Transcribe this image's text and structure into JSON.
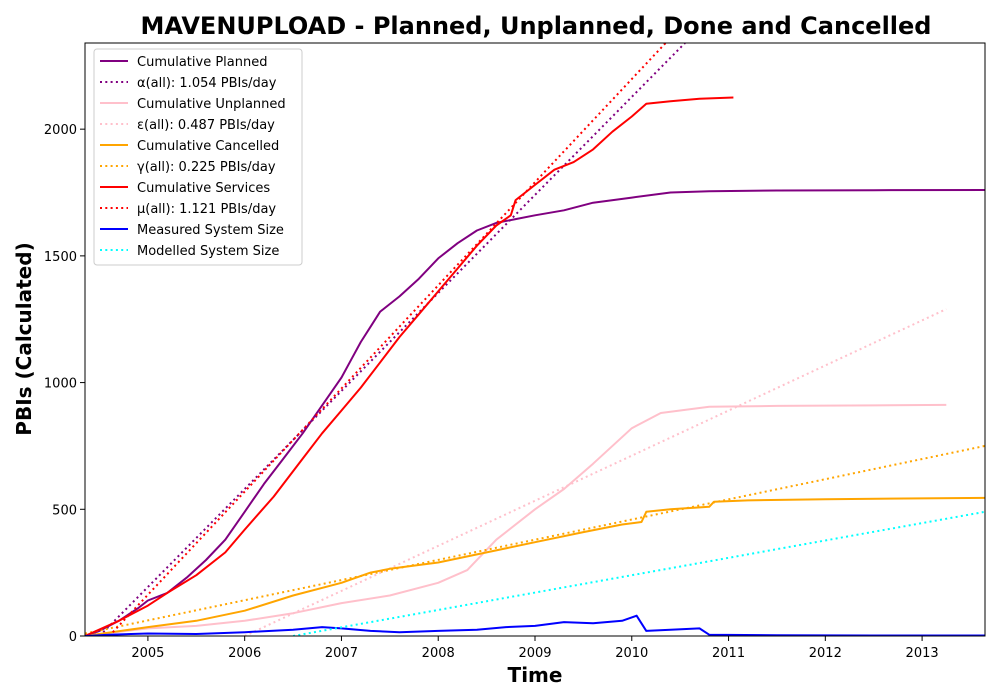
{
  "chart_data": {
    "type": "line",
    "title": "MAVENUPLOAD - Planned, Unplanned, Done  and Cancelled",
    "xlabel": "Time",
    "ylabel": "PBIs (Calculated)",
    "xlim": [
      2004.35,
      2013.65
    ],
    "ylim": [
      0,
      2340
    ],
    "x_ticks": [
      2005,
      2006,
      2007,
      2008,
      2009,
      2010,
      2011,
      2012,
      2013
    ],
    "y_ticks": [
      0,
      500,
      1000,
      1500,
      2000
    ],
    "legend_position": "top-left",
    "series": [
      {
        "name": "Cumulative Planned",
        "color": "#800080",
        "style": "solid",
        "points": [
          [
            2004.35,
            0
          ],
          [
            2004.5,
            20
          ],
          [
            2004.7,
            60
          ],
          [
            2004.9,
            110
          ],
          [
            2005.0,
            140
          ],
          [
            2005.2,
            170
          ],
          [
            2005.4,
            230
          ],
          [
            2005.6,
            300
          ],
          [
            2005.8,
            380
          ],
          [
            2006.0,
            490
          ],
          [
            2006.2,
            600
          ],
          [
            2006.4,
            700
          ],
          [
            2006.6,
            800
          ],
          [
            2006.8,
            910
          ],
          [
            2007.0,
            1020
          ],
          [
            2007.1,
            1090
          ],
          [
            2007.2,
            1160
          ],
          [
            2007.3,
            1220
          ],
          [
            2007.4,
            1280
          ],
          [
            2007.6,
            1340
          ],
          [
            2007.8,
            1410
          ],
          [
            2008.0,
            1490
          ],
          [
            2008.2,
            1550
          ],
          [
            2008.4,
            1600
          ],
          [
            2008.6,
            1630
          ],
          [
            2008.8,
            1645
          ],
          [
            2009.0,
            1660
          ],
          [
            2009.3,
            1680
          ],
          [
            2009.6,
            1710
          ],
          [
            2010.0,
            1730
          ],
          [
            2010.4,
            1750
          ],
          [
            2010.8,
            1755
          ],
          [
            2011.5,
            1758
          ],
          [
            2012.5,
            1759
          ],
          [
            2013.65,
            1760
          ]
        ]
      },
      {
        "name": "α(all): 1.054 PBIs/day",
        "color": "#800080",
        "style": "dotted",
        "points": [
          [
            2004.5,
            0
          ],
          [
            2010.55,
            2340
          ]
        ]
      },
      {
        "name": "Cumulative Unplanned",
        "color": "#ffc0cb",
        "style": "solid",
        "points": [
          [
            2004.35,
            0
          ],
          [
            2005.0,
            30
          ],
          [
            2005.5,
            40
          ],
          [
            2006.0,
            60
          ],
          [
            2006.5,
            90
          ],
          [
            2007.0,
            130
          ],
          [
            2007.5,
            160
          ],
          [
            2008.0,
            210
          ],
          [
            2008.3,
            260
          ],
          [
            2008.6,
            380
          ],
          [
            2009.0,
            500
          ],
          [
            2009.3,
            580
          ],
          [
            2009.6,
            680
          ],
          [
            2010.0,
            820
          ],
          [
            2010.3,
            880
          ],
          [
            2010.8,
            905
          ],
          [
            2011.5,
            908
          ],
          [
            2012.5,
            910
          ],
          [
            2013.25,
            912
          ]
        ]
      },
      {
        "name": "ε(all): 0.487 PBIs/day",
        "color": "#ffc0cb",
        "style": "dotted",
        "points": [
          [
            2006.0,
            0
          ],
          [
            2013.25,
            1290
          ]
        ]
      },
      {
        "name": "Cumulative Cancelled",
        "color": "#ffa500",
        "style": "solid",
        "points": [
          [
            2004.35,
            0
          ],
          [
            2005.0,
            35
          ],
          [
            2005.5,
            60
          ],
          [
            2006.0,
            100
          ],
          [
            2006.5,
            160
          ],
          [
            2007.0,
            210
          ],
          [
            2007.3,
            250
          ],
          [
            2007.5,
            265
          ],
          [
            2008.0,
            290
          ],
          [
            2008.5,
            330
          ],
          [
            2009.0,
            370
          ],
          [
            2009.5,
            410
          ],
          [
            2009.9,
            440
          ],
          [
            2010.1,
            450
          ],
          [
            2010.15,
            490
          ],
          [
            2010.4,
            500
          ],
          [
            2010.8,
            510
          ],
          [
            2010.85,
            530
          ],
          [
            2011.2,
            535
          ],
          [
            2012.0,
            540
          ],
          [
            2013.65,
            545
          ]
        ]
      },
      {
        "name": "γ(all): 0.225 PBIs/day",
        "color": "#ffa500",
        "style": "dotted",
        "points": [
          [
            2004.35,
            10
          ],
          [
            2013.65,
            750
          ]
        ]
      },
      {
        "name": "Cumulative Services",
        "color": "#ff0000",
        "style": "solid",
        "points": [
          [
            2004.35,
            0
          ],
          [
            2004.7,
            60
          ],
          [
            2005.0,
            120
          ],
          [
            2005.2,
            170
          ],
          [
            2005.5,
            240
          ],
          [
            2005.8,
            330
          ],
          [
            2006.0,
            420
          ],
          [
            2006.3,
            550
          ],
          [
            2006.6,
            700
          ],
          [
            2006.8,
            800
          ],
          [
            2007.0,
            890
          ],
          [
            2007.2,
            980
          ],
          [
            2007.4,
            1080
          ],
          [
            2007.6,
            1180
          ],
          [
            2007.8,
            1270
          ],
          [
            2008.0,
            1360
          ],
          [
            2008.2,
            1450
          ],
          [
            2008.4,
            1540
          ],
          [
            2008.6,
            1620
          ],
          [
            2008.75,
            1660
          ],
          [
            2008.8,
            1720
          ],
          [
            2009.0,
            1780
          ],
          [
            2009.2,
            1840
          ],
          [
            2009.4,
            1870
          ],
          [
            2009.6,
            1920
          ],
          [
            2009.8,
            1990
          ],
          [
            2010.0,
            2050
          ],
          [
            2010.15,
            2100
          ],
          [
            2010.4,
            2110
          ],
          [
            2010.7,
            2120
          ],
          [
            2011.05,
            2125
          ]
        ]
      },
      {
        "name": "μ(all): 1.121 PBIs/day",
        "color": "#ff0000",
        "style": "dotted",
        "points": [
          [
            2004.6,
            0
          ],
          [
            2010.35,
            2340
          ]
        ]
      },
      {
        "name": "Measured System Size",
        "color": "#0000ff",
        "style": "solid",
        "points": [
          [
            2004.35,
            0
          ],
          [
            2004.6,
            5
          ],
          [
            2005.0,
            10
          ],
          [
            2005.5,
            8
          ],
          [
            2006.0,
            15
          ],
          [
            2006.5,
            25
          ],
          [
            2006.8,
            35
          ],
          [
            2007.0,
            30
          ],
          [
            2007.3,
            20
          ],
          [
            2007.6,
            15
          ],
          [
            2008.0,
            20
          ],
          [
            2008.4,
            25
          ],
          [
            2008.7,
            35
          ],
          [
            2009.0,
            40
          ],
          [
            2009.3,
            55
          ],
          [
            2009.6,
            50
          ],
          [
            2009.9,
            60
          ],
          [
            2010.05,
            80
          ],
          [
            2010.15,
            20
          ],
          [
            2010.4,
            25
          ],
          [
            2010.7,
            30
          ],
          [
            2010.8,
            5
          ],
          [
            2011.5,
            3
          ],
          [
            2012.5,
            2
          ],
          [
            2013.65,
            2
          ]
        ]
      },
      {
        "name": "Modelled System Size",
        "color": "#00ffff",
        "style": "dotted",
        "points": [
          [
            2006.5,
            0
          ],
          [
            2013.65,
            490
          ]
        ]
      }
    ]
  }
}
